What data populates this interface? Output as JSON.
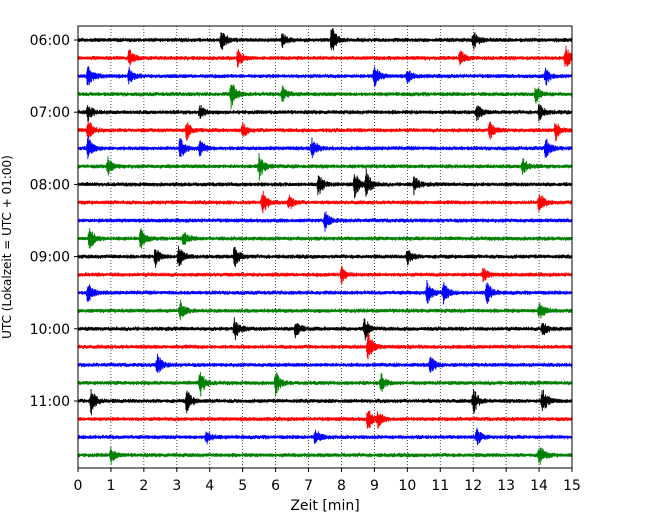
{
  "chart_data": {
    "type": "line",
    "title": "",
    "xlabel": "Zeit  [min]",
    "ylabel": "UTC (Lokalzeit = UTC + 01:00)",
    "xlim": [
      0,
      15
    ],
    "x_ticks": [
      0,
      1,
      2,
      3,
      4,
      5,
      6,
      7,
      8,
      9,
      10,
      11,
      12,
      13,
      14,
      15
    ],
    "x_tick_labels": [
      "0",
      "1",
      "2",
      "3",
      "4",
      "5",
      "6",
      "7",
      "8",
      "9",
      "10",
      "11",
      "12",
      "13",
      "14",
      "15"
    ],
    "y_tick_labels": [
      "06:00",
      "07:00",
      "08:00",
      "09:00",
      "10:00",
      "11:00"
    ],
    "trace_interval_minutes": 15,
    "start_time": "06:00",
    "trace_count": 24,
    "color_cycle": [
      "#000000",
      "#ff0000",
      "#0000ff",
      "#008000"
    ],
    "grid": {
      "x": "dotted",
      "y": false
    },
    "events": [
      [
        [
          4.35,
          0.8
        ],
        [
          6.2,
          0.5
        ],
        [
          7.7,
          1.0
        ],
        [
          12.0,
          0.7
        ]
      ],
      [
        [
          1.55,
          0.6
        ],
        [
          4.85,
          0.6
        ],
        [
          11.6,
          0.6
        ],
        [
          14.8,
          0.9
        ]
      ],
      [
        [
          0.3,
          0.9
        ],
        [
          1.55,
          0.6
        ],
        [
          9.0,
          0.8
        ],
        [
          10.0,
          0.5
        ],
        [
          14.2,
          0.6
        ]
      ],
      [
        [
          4.65,
          1.0
        ],
        [
          6.2,
          0.6
        ],
        [
          13.9,
          0.6
        ]
      ],
      [
        [
          0.3,
          0.6
        ],
        [
          3.7,
          0.5
        ],
        [
          12.1,
          0.6
        ],
        [
          14.0,
          0.6
        ]
      ],
      [
        [
          0.3,
          0.8
        ],
        [
          3.3,
          0.7
        ],
        [
          5.0,
          0.5
        ],
        [
          12.5,
          0.6
        ],
        [
          14.5,
          0.7
        ]
      ],
      [
        [
          0.3,
          0.8
        ],
        [
          3.1,
          0.8
        ],
        [
          3.7,
          0.6
        ],
        [
          7.1,
          0.7
        ],
        [
          14.2,
          0.8
        ]
      ],
      [
        [
          0.9,
          0.6
        ],
        [
          5.5,
          0.9
        ],
        [
          13.5,
          0.6
        ]
      ],
      [
        [
          7.3,
          0.8
        ],
        [
          8.4,
          0.9
        ],
        [
          8.75,
          1.0
        ],
        [
          10.2,
          0.6
        ]
      ],
      [
        [
          5.6,
          0.9
        ],
        [
          6.4,
          0.6
        ],
        [
          14.0,
          0.8
        ]
      ],
      [
        [
          7.5,
          0.7
        ]
      ],
      [
        [
          0.35,
          0.9
        ],
        [
          1.9,
          0.7
        ],
        [
          3.2,
          0.5
        ]
      ],
      [
        [
          2.35,
          0.7
        ],
        [
          3.05,
          0.8
        ],
        [
          4.75,
          0.8
        ],
        [
          10.0,
          0.6
        ]
      ],
      [
        [
          8.0,
          0.6
        ],
        [
          12.3,
          0.5
        ]
      ],
      [
        [
          0.3,
          0.7
        ],
        [
          10.6,
          0.8
        ],
        [
          11.1,
          0.8
        ],
        [
          12.4,
          0.9
        ]
      ],
      [
        [
          3.1,
          0.7
        ],
        [
          14.0,
          0.7
        ]
      ],
      [
        [
          4.75,
          0.8
        ],
        [
          6.6,
          0.7
        ],
        [
          8.7,
          0.8
        ],
        [
          14.1,
          0.6
        ]
      ],
      [
        [
          8.8,
          1.0
        ]
      ],
      [
        [
          2.4,
          0.8
        ],
        [
          10.7,
          0.7
        ]
      ],
      [
        [
          3.7,
          1.0
        ],
        [
          6.0,
          0.8
        ],
        [
          9.2,
          0.6
        ]
      ],
      [
        [
          0.4,
          0.9
        ],
        [
          3.3,
          0.8
        ],
        [
          12.0,
          0.9
        ],
        [
          14.1,
          0.9
        ]
      ],
      [
        [
          8.8,
          0.8
        ],
        [
          9.1,
          0.5
        ]
      ],
      [
        [
          3.9,
          0.5
        ],
        [
          7.2,
          0.6
        ],
        [
          12.1,
          0.6
        ]
      ],
      [
        [
          1.0,
          0.5
        ],
        [
          14.0,
          0.8
        ]
      ]
    ]
  }
}
